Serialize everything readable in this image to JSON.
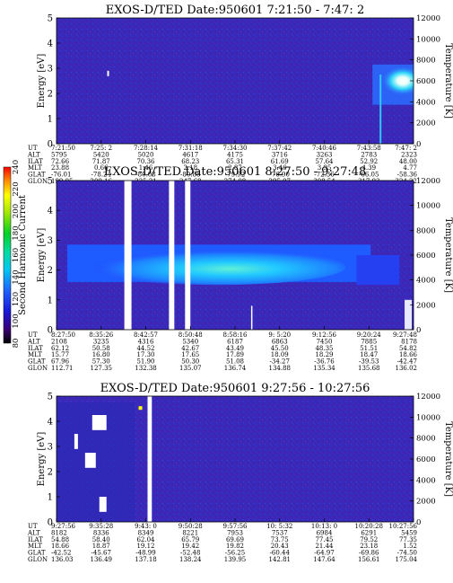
{
  "colorbar": {
    "label": "Second Harmonic Current",
    "ticks": [
      80,
      100,
      120,
      140,
      160,
      180,
      200,
      220,
      240
    ]
  },
  "chart_data": [
    {
      "type": "heatmap",
      "title": "EXOS-D/TED   Date:950601   7:21:50 - 7:47: 2",
      "ylabel": "Energy [eV]",
      "y2label": "Temperature [K]",
      "ylim": [
        0,
        5
      ],
      "yticks": [
        0,
        1,
        2,
        3,
        4,
        5
      ],
      "y2lim": [
        0,
        12000
      ],
      "y2ticks": [
        0,
        2000,
        4000,
        6000,
        8000,
        10000,
        12000
      ],
      "eph_labels": [
        "UT",
        "ALT",
        "ILAT",
        "MLT",
        "GLAT",
        "GLON"
      ],
      "eph": [
        [
          "7:21:50",
          "5795",
          "72.66",
          "23.88",
          "-76.01",
          "199.05"
        ],
        [
          "7:25: 2",
          "5420",
          "71.87",
          "0.66",
          "-78.24",
          "209.16"
        ],
        [
          "7:28:14",
          "5020",
          "70.36",
          "1.46",
          "-80.08",
          "225.21"
        ],
        [
          "7:31:18",
          "4617",
          "68.23",
          "2.18",
          "-80.88",
          "247.68"
        ],
        [
          "7:34:30",
          "4175",
          "65.31",
          "2.87",
          "-79.92",
          "274.08"
        ],
        [
          "7:37:42",
          "3716",
          "61.69",
          "3.46",
          "-76.90",
          "295.07"
        ],
        [
          "7:40:46",
          "3263",
          "57.64",
          "3.95",
          "-72.36",
          "308.54"
        ],
        [
          "7:43:58",
          "2783",
          "52.92",
          "4.39",
          "-66.05",
          "317.93"
        ],
        [
          "7:47: 2",
          "2323",
          "48.00",
          "4.77",
          "-58.36",
          "324.22"
        ]
      ]
    },
    {
      "type": "heatmap",
      "title": "EXOS-D/TED   Date:950601   8:27:50 - 9:27:48",
      "ylabel": "Energy [eV]",
      "y2label": "Temperature [K]",
      "ylim": [
        0,
        5
      ],
      "yticks": [
        0,
        1,
        2,
        3,
        4,
        5
      ],
      "y2lim": [
        0,
        12000
      ],
      "y2ticks": [
        0,
        2000,
        4000,
        6000,
        8000,
        10000,
        12000
      ],
      "eph_labels": [
        "UT",
        "ALT",
        "ILAT",
        "MLT",
        "GLAT",
        "GLON"
      ],
      "eph": [
        [
          "8:27:50",
          "2108",
          "62.12",
          "15.77",
          "67.96",
          "112.71"
        ],
        [
          "8:35:26",
          "3235",
          "50.58",
          "16.80",
          "57.30",
          "127.35"
        ],
        [
          "8:42:57",
          "4316",
          "44.52",
          "17.30",
          "51.90",
          "132.38"
        ],
        [
          "8:50:48",
          "5340",
          "42.67",
          "17.65",
          "50.30",
          "135.07"
        ],
        [
          "8:58:16",
          "6187",
          "43.49",
          "17.89",
          "51.08",
          "136.74"
        ],
        [
          "9: 5:20",
          "6863",
          "45.50",
          "18.09",
          "-34.27",
          "134.88"
        ],
        [
          "9:12:56",
          "7450",
          "48.35",
          "18.29",
          "-36.76",
          "135.34"
        ],
        [
          "9:20:24",
          "7885",
          "51.51",
          "18.47",
          "-39.53",
          "135.68"
        ],
        [
          "9:27:48",
          "8178",
          "54.82",
          "18.66",
          "-42.47",
          "136.02"
        ]
      ]
    },
    {
      "type": "heatmap",
      "title": "EXOS-D/TED   Date:950601   9:27:56 - 10:27:56",
      "ylabel": "Energy [eV]",
      "y2label": "Temperature [K]",
      "ylim": [
        0,
        5
      ],
      "yticks": [
        0,
        1,
        2,
        3,
        4,
        5
      ],
      "y2lim": [
        0,
        12000
      ],
      "y2ticks": [
        0,
        2000,
        4000,
        6000,
        8000,
        10000,
        12000
      ],
      "eph_labels": [
        "UT",
        "ALT",
        "ILAT",
        "MLT",
        "GLAT",
        "GLON"
      ],
      "eph": [
        [
          "9:27:56",
          "8182",
          "54.88",
          "18.66",
          "-42.52",
          "136.03"
        ],
        [
          "9:35:28",
          "8336",
          "58.40",
          "18.87",
          "-45.67",
          "136.49"
        ],
        [
          "9:43: 0",
          "8349",
          "62.04",
          "19.12",
          "-48.99",
          "137.18"
        ],
        [
          "9:50:28",
          "8221",
          "65.79",
          "19.42",
          "-52.48",
          "138.24"
        ],
        [
          "9:57:56",
          "7953",
          "69.69",
          "19.82",
          "-56.25",
          "139.95"
        ],
        [
          "10: 5:32",
          "7537",
          "73.75",
          "20.43",
          "-60.44",
          "142.81"
        ],
        [
          "10:13: 0",
          "6984",
          "77.45",
          "21.44",
          "-64.97",
          "147.64"
        ],
        [
          "10:20:28",
          "6291",
          "79.52",
          "23.18",
          "-69.86",
          "156.61"
        ],
        [
          "10:27:56",
          "5459",
          "77.35",
          "1.52",
          "-74.50",
          "175.04"
        ]
      ]
    }
  ]
}
